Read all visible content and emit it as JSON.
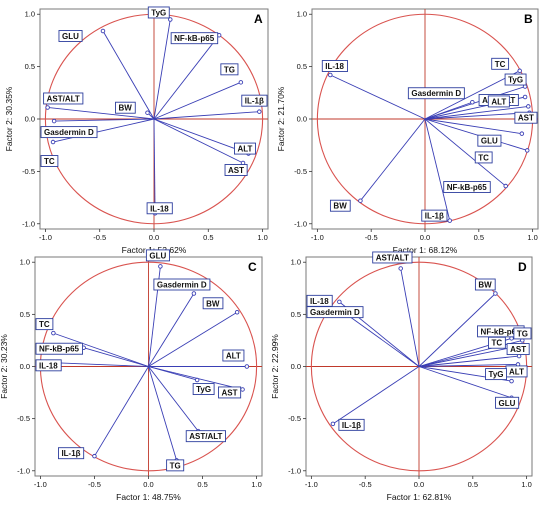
{
  "colors": {
    "circle": "#d9534f",
    "axis_line": "#c0392b",
    "vector": "#3a3fb5",
    "label_border": "#2d3e9e",
    "frame": "#7a7a7a"
  },
  "chart_data": [
    {
      "type": "scatter",
      "subtype": "pca-correlation-circle",
      "panel": "A",
      "xlabel": "Factor 1: 52.62%",
      "ylabel": "Factor 2: 30.35%",
      "xlim": [
        -1.05,
        1.05
      ],
      "ylim": [
        -1.05,
        1.05
      ],
      "xticks": [
        "-1.0",
        "-0.5",
        "0.0",
        "0.5",
        "1.0"
      ],
      "yticks": [
        "1.0",
        "0.5",
        "0.0",
        "-0.5",
        "-1.0"
      ],
      "variables": [
        {
          "name": "TyG",
          "x": 0.15,
          "y": 0.95
        },
        {
          "name": "NF-kB-p65",
          "x": 0.6,
          "y": 0.8
        },
        {
          "name": "GLU",
          "x": -0.47,
          "y": 0.84
        },
        {
          "name": "TG",
          "x": 0.8,
          "y": 0.35
        },
        {
          "name": "IL-1β",
          "x": 0.97,
          "y": 0.07
        },
        {
          "name": "AST/ALT",
          "x": -0.98,
          "y": 0.11
        },
        {
          "name": "BW",
          "x": -0.06,
          "y": 0.06
        },
        {
          "name": "Gasdermin D",
          "x": -0.92,
          "y": -0.02
        },
        {
          "name": "TC",
          "x": -0.93,
          "y": -0.22
        },
        {
          "name": "ALT",
          "x": 0.87,
          "y": -0.33
        },
        {
          "name": "AST",
          "x": 0.82,
          "y": -0.42
        },
        {
          "name": "IL-18",
          "x": 0.01,
          "y": -0.9
        }
      ]
    },
    {
      "type": "scatter",
      "subtype": "pca-correlation-circle",
      "panel": "B",
      "xlabel": "Factor 1: 68.12%",
      "ylabel": "Factor 2: 21.70%",
      "xlim": [
        -1.05,
        1.05
      ],
      "ylim": [
        -1.05,
        1.05
      ],
      "xticks": [
        "-1.0",
        "-0.5",
        "0.0",
        "0.5",
        "1.0"
      ],
      "yticks": [
        "1.0",
        "0.5",
        "0.0",
        "-0.5",
        "-1.0"
      ],
      "variables": [
        {
          "name": "IL-18",
          "x": -0.88,
          "y": 0.42
        },
        {
          "name": "TC",
          "x": 0.88,
          "y": 0.46
        },
        {
          "name": "TyG",
          "x": 0.93,
          "y": 0.31
        },
        {
          "name": "Gasdermin D",
          "x": 0.44,
          "y": 0.16
        },
        {
          "name": "AST/ALT",
          "x": 0.93,
          "y": 0.21
        },
        {
          "name": "ALT",
          "x": 0.96,
          "y": 0.12
        },
        {
          "name": "AST",
          "x": 0.97,
          "y": 0.06
        },
        {
          "name": "GLU",
          "x": 0.9,
          "y": -0.14
        },
        {
          "name": "TC",
          "x": 0.95,
          "y": -0.3
        },
        {
          "name": "NF-kB-p65",
          "x": 0.75,
          "y": -0.64
        },
        {
          "name": "BW",
          "x": -0.6,
          "y": -0.78
        },
        {
          "name": "IL-1β",
          "x": 0.23,
          "y": -0.97
        }
      ]
    },
    {
      "type": "scatter",
      "subtype": "pca-correlation-circle",
      "panel": "C",
      "xlabel": "Factor 1: 48.75%",
      "ylabel": "Factor 2: 30.23%",
      "xlim": [
        -1.05,
        1.05
      ],
      "ylim": [
        -1.05,
        1.05
      ],
      "xticks": [
        "-1.0",
        "-0.5",
        "0.0",
        "0.5",
        "1.0"
      ],
      "yticks": [
        "1.0",
        "0.5",
        "0.0",
        "-0.5",
        "-1.0"
      ],
      "variables": [
        {
          "name": "GLU",
          "x": 0.11,
          "y": 0.96
        },
        {
          "name": "Gasdermin D",
          "x": 0.42,
          "y": 0.7
        },
        {
          "name": "BW",
          "x": 0.82,
          "y": 0.52
        },
        {
          "name": "TC",
          "x": -0.88,
          "y": 0.32
        },
        {
          "name": "NF-kB-p65",
          "x": -0.6,
          "y": 0.18
        },
        {
          "name": "IL-18",
          "x": -0.97,
          "y": 0.04
        },
        {
          "name": "ALT",
          "x": 0.91,
          "y": 0.0
        },
        {
          "name": "AST",
          "x": 0.87,
          "y": -0.22
        },
        {
          "name": "TyG",
          "x": 0.45,
          "y": -0.13
        },
        {
          "name": "AST/ALT",
          "x": 0.46,
          "y": -0.62
        },
        {
          "name": "IL-1β",
          "x": -0.5,
          "y": -0.86
        },
        {
          "name": "TG",
          "x": 0.26,
          "y": -0.9
        }
      ]
    },
    {
      "type": "scatter",
      "subtype": "pca-correlation-circle",
      "panel": "D",
      "xlabel": "Factor 1: 62.81%",
      "ylabel": "Factor 2: 22.99%",
      "xlim": [
        -1.05,
        1.05
      ],
      "ylim": [
        -1.05,
        1.05
      ],
      "xticks": [
        "-1.0",
        "-0.5",
        "0.0",
        "0.5",
        "1.0"
      ],
      "yticks": [
        "1.0",
        "0.5",
        "0.0",
        "-0.5",
        "-1.0"
      ],
      "variables": [
        {
          "name": "AST/ALT",
          "x": -0.17,
          "y": 0.94
        },
        {
          "name": "BW",
          "x": 0.71,
          "y": 0.7
        },
        {
          "name": "IL-18",
          "x": -0.74,
          "y": 0.62
        },
        {
          "name": "Gasdermin D",
          "x": -0.74,
          "y": 0.55
        },
        {
          "name": "NF-kB-p65",
          "x": 0.86,
          "y": 0.27
        },
        {
          "name": "TG",
          "x": 0.96,
          "y": 0.25
        },
        {
          "name": "TC",
          "x": 0.85,
          "y": 0.18
        },
        {
          "name": "AST",
          "x": 0.93,
          "y": 0.1
        },
        {
          "name": "ALT",
          "x": 0.92,
          "y": 0.02
        },
        {
          "name": "TyG",
          "x": 0.86,
          "y": -0.14
        },
        {
          "name": "GLU",
          "x": 0.86,
          "y": -0.3
        },
        {
          "name": "IL-1β",
          "x": -0.8,
          "y": -0.55
        }
      ]
    }
  ]
}
